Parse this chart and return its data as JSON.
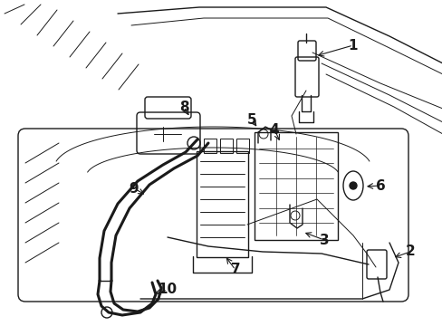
{
  "background_color": "#ffffff",
  "line_color": "#1a1a1a",
  "label_color": "#1a1a1a",
  "label_fontsize": 11,
  "lw_main": 1.0,
  "lw_thick": 2.2,
  "lw_thin": 0.7
}
